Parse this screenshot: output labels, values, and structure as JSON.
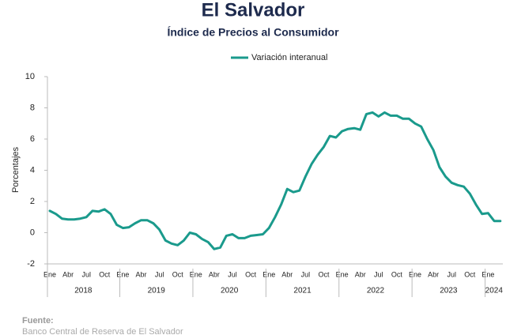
{
  "chart_data": {
    "type": "line",
    "title": "El Salvador",
    "subtitle": "Índice de Precios al Consumidor",
    "y_label": "Porcentajes",
    "categories": [
      "Ene",
      null,
      null,
      "Abr",
      null,
      null,
      "Jul",
      null,
      null,
      "Oct",
      null,
      null,
      "Ene",
      null,
      null,
      "Abr",
      null,
      null,
      "Jul",
      null,
      null,
      "Oct",
      null,
      null,
      "Ene",
      null,
      null,
      "Abr",
      null,
      null,
      "Jul",
      null,
      null,
      "Oct",
      null,
      null,
      "Ene",
      null,
      null,
      "Abr",
      null,
      null,
      "Jul",
      null,
      null,
      "Oct",
      null,
      null,
      "Ene",
      null,
      null,
      "Abr",
      null,
      null,
      "Jul",
      null,
      null,
      "Oct",
      null,
      null,
      "Ene",
      null,
      null,
      "Abr",
      null,
      null,
      "Jul",
      null,
      null,
      "Oct",
      null,
      null,
      "Ene",
      null,
      null
    ],
    "years": [
      "2018",
      "2019",
      "2020",
      "2021",
      "2022",
      "2023",
      "2024"
    ],
    "series": [
      {
        "name": "Variación interanual",
        "color": "#1a9a8c",
        "values": [
          1.4,
          1.2,
          0.9,
          0.85,
          0.85,
          0.9,
          1.0,
          1.4,
          1.35,
          1.5,
          1.2,
          0.5,
          0.3,
          0.35,
          0.6,
          0.8,
          0.8,
          0.6,
          0.2,
          -0.5,
          -0.7,
          -0.8,
          -0.5,
          0.0,
          -0.1,
          -0.4,
          -0.6,
          -1.05,
          -0.95,
          -0.2,
          -0.1,
          -0.35,
          -0.35,
          -0.2,
          -0.15,
          -0.1,
          0.3,
          1.0,
          1.8,
          2.8,
          2.6,
          2.7,
          3.6,
          4.4,
          5.0,
          5.5,
          6.2,
          6.1,
          6.5,
          6.65,
          6.7,
          6.6,
          7.6,
          7.7,
          7.45,
          7.7,
          7.5,
          7.5,
          7.3,
          7.3,
          7.0,
          6.8,
          6.0,
          5.3,
          4.2,
          3.6,
          3.2,
          3.05,
          2.95,
          2.5,
          1.8,
          1.2,
          1.25,
          0.75,
          0.75
        ]
      }
    ],
    "ylim": [
      -2,
      10
    ],
    "yticks": [
      -2,
      0,
      2,
      4,
      6,
      8,
      10
    ],
    "legend": "top",
    "source_label": "Fuente:",
    "source": "Banco Central de Reserva de El Salvador"
  }
}
